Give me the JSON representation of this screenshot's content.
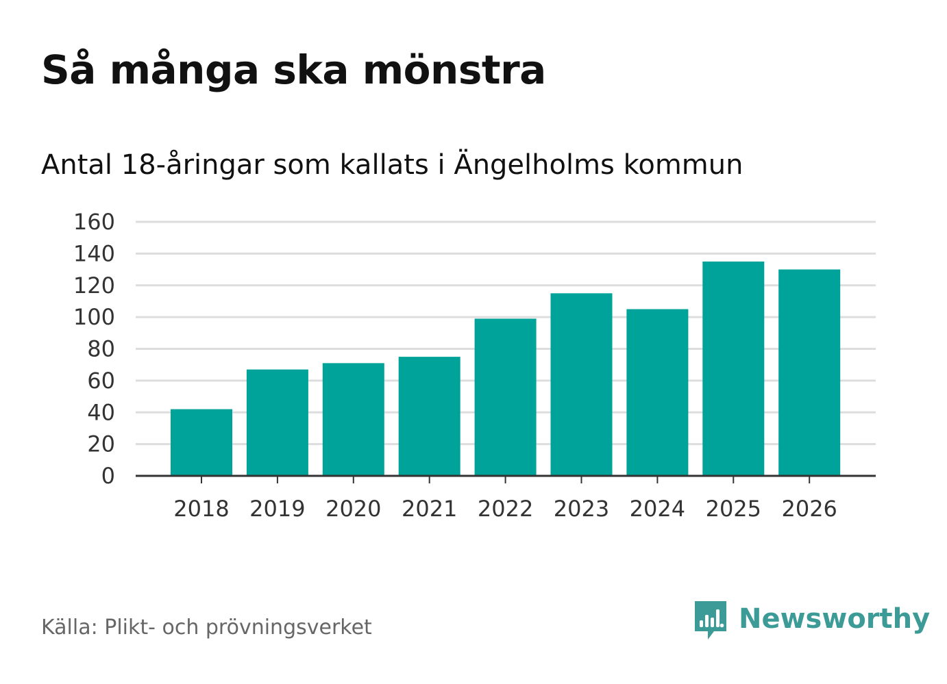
{
  "title": "Så många ska mönstra",
  "subtitle": "Antal 18-åringar som kallats i Ängelholms kommun",
  "source": "Källa: Plikt- och prövningsverket",
  "brand": {
    "name": "Newsworthy",
    "icon": "newsworthy-logo-icon",
    "color": "#3c9b96"
  },
  "colors": {
    "bar": "#00a39a",
    "grid": "#dddddd",
    "axis": "#333333"
  },
  "chart_data": {
    "type": "bar",
    "title": "Så många ska mönstra",
    "subtitle": "Antal 18-åringar som kallats i Ängelholms kommun",
    "categories": [
      "2018",
      "2019",
      "2020",
      "2021",
      "2022",
      "2023",
      "2024",
      "2025",
      "2026"
    ],
    "values": [
      42,
      67,
      71,
      75,
      99,
      115,
      105,
      135,
      130
    ],
    "xlabel": "",
    "ylabel": "",
    "ylim": [
      0,
      160
    ],
    "yticks": [
      0,
      20,
      40,
      60,
      80,
      100,
      120,
      140,
      160
    ],
    "grid": true,
    "legend": "none"
  }
}
